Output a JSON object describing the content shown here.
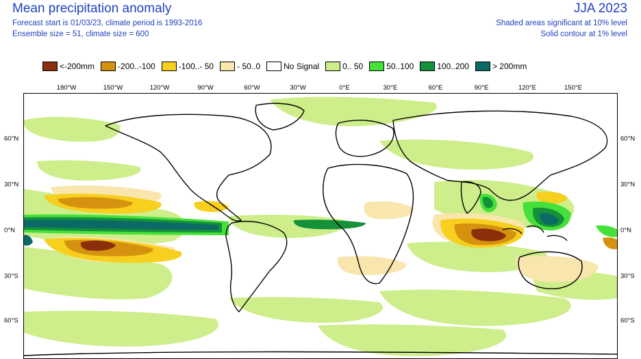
{
  "header": {
    "title": "Mean precipitation anomaly",
    "forecast_line": "Forecast start is 01/03/23, climate period is 1993-2016",
    "ensemble_line": "Ensemble size = 51, climate size = 600",
    "season": "JJA 2023",
    "significance_shaded": "Shaded areas significant at 10% level",
    "significance_contour": "Solid contour at 1% level"
  },
  "legend": [
    {
      "label": "<-200mm",
      "color": "#8b2e0a"
    },
    {
      "label": "-200..-100",
      "color": "#d4920f"
    },
    {
      "label": "-100..- 50",
      "color": "#f7cf1e"
    },
    {
      "label": "- 50..0",
      "color": "#f8e6ad"
    },
    {
      "label": "No Signal",
      "color": "#ffffff"
    },
    {
      "label": "0.. 50",
      "color": "#cdee8a"
    },
    {
      "label": "50..100",
      "color": "#46e03a"
    },
    {
      "label": "100..200",
      "color": "#14913a"
    },
    {
      "label": "> 200mm",
      "color": "#0b6a66"
    }
  ],
  "axes": {
    "longitude_labels": [
      "180°W",
      "150°W",
      "120°W",
      "90°W",
      "60°W",
      "30°W",
      "0°E",
      "30°E",
      "60°E",
      "90°E",
      "120°E",
      "150°E"
    ],
    "latitude_labels": [
      "60°N",
      "30°N",
      "0°N",
      "30°S",
      "60°S"
    ]
  }
}
